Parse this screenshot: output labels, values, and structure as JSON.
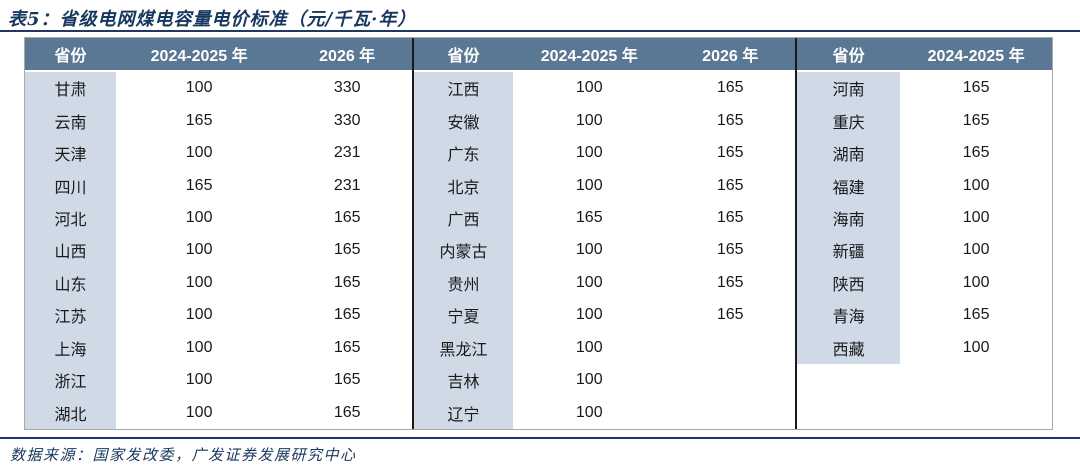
{
  "title": "表5：省级电网煤电容量电价标准（元/千瓦·年）",
  "source": "数据来源：国家发改委，广发证券发展研究中心",
  "colors": {
    "header_bg": "#5A7894",
    "province_bg": "#CFDAE6",
    "accent_navy": "#17375E",
    "rule_color": "#1F3864"
  },
  "chart_data": {
    "type": "table",
    "title": "省级电网煤电容量电价标准（元/千瓦·年）",
    "unit": "元/千瓦·年",
    "groups": [
      {
        "headers": [
          "省份",
          "2024-2025 年",
          "2026 年"
        ],
        "rows": [
          [
            "甘肃",
            "100",
            "330"
          ],
          [
            "云南",
            "165",
            "330"
          ],
          [
            "天津",
            "100",
            "231"
          ],
          [
            "四川",
            "165",
            "231"
          ],
          [
            "河北",
            "100",
            "165"
          ],
          [
            "山西",
            "100",
            "165"
          ],
          [
            "山东",
            "100",
            "165"
          ],
          [
            "江苏",
            "100",
            "165"
          ],
          [
            "上海",
            "100",
            "165"
          ],
          [
            "浙江",
            "100",
            "165"
          ],
          [
            "湖北",
            "100",
            "165"
          ]
        ]
      },
      {
        "headers": [
          "省份",
          "2024-2025 年",
          "2026 年"
        ],
        "rows": [
          [
            "江西",
            "100",
            "165"
          ],
          [
            "安徽",
            "100",
            "165"
          ],
          [
            "广东",
            "100",
            "165"
          ],
          [
            "北京",
            "100",
            "165"
          ],
          [
            "广西",
            "165",
            "165"
          ],
          [
            "内蒙古",
            "100",
            "165"
          ],
          [
            "贵州",
            "100",
            "165"
          ],
          [
            "宁夏",
            "100",
            "165"
          ],
          [
            "黑龙江",
            "100",
            ""
          ],
          [
            "吉林",
            "100",
            ""
          ],
          [
            "辽宁",
            "100",
            ""
          ]
        ]
      },
      {
        "headers": [
          "省份",
          "2024-2025 年"
        ],
        "rows": [
          [
            "河南",
            "165"
          ],
          [
            "重庆",
            "165"
          ],
          [
            "湖南",
            "165"
          ],
          [
            "福建",
            "100"
          ],
          [
            "海南",
            "100"
          ],
          [
            "新疆",
            "100"
          ],
          [
            "陕西",
            "100"
          ],
          [
            "青海",
            "165"
          ],
          [
            "西藏",
            "100"
          ],
          [
            "",
            ""
          ],
          [
            "",
            ""
          ]
        ]
      }
    ]
  }
}
